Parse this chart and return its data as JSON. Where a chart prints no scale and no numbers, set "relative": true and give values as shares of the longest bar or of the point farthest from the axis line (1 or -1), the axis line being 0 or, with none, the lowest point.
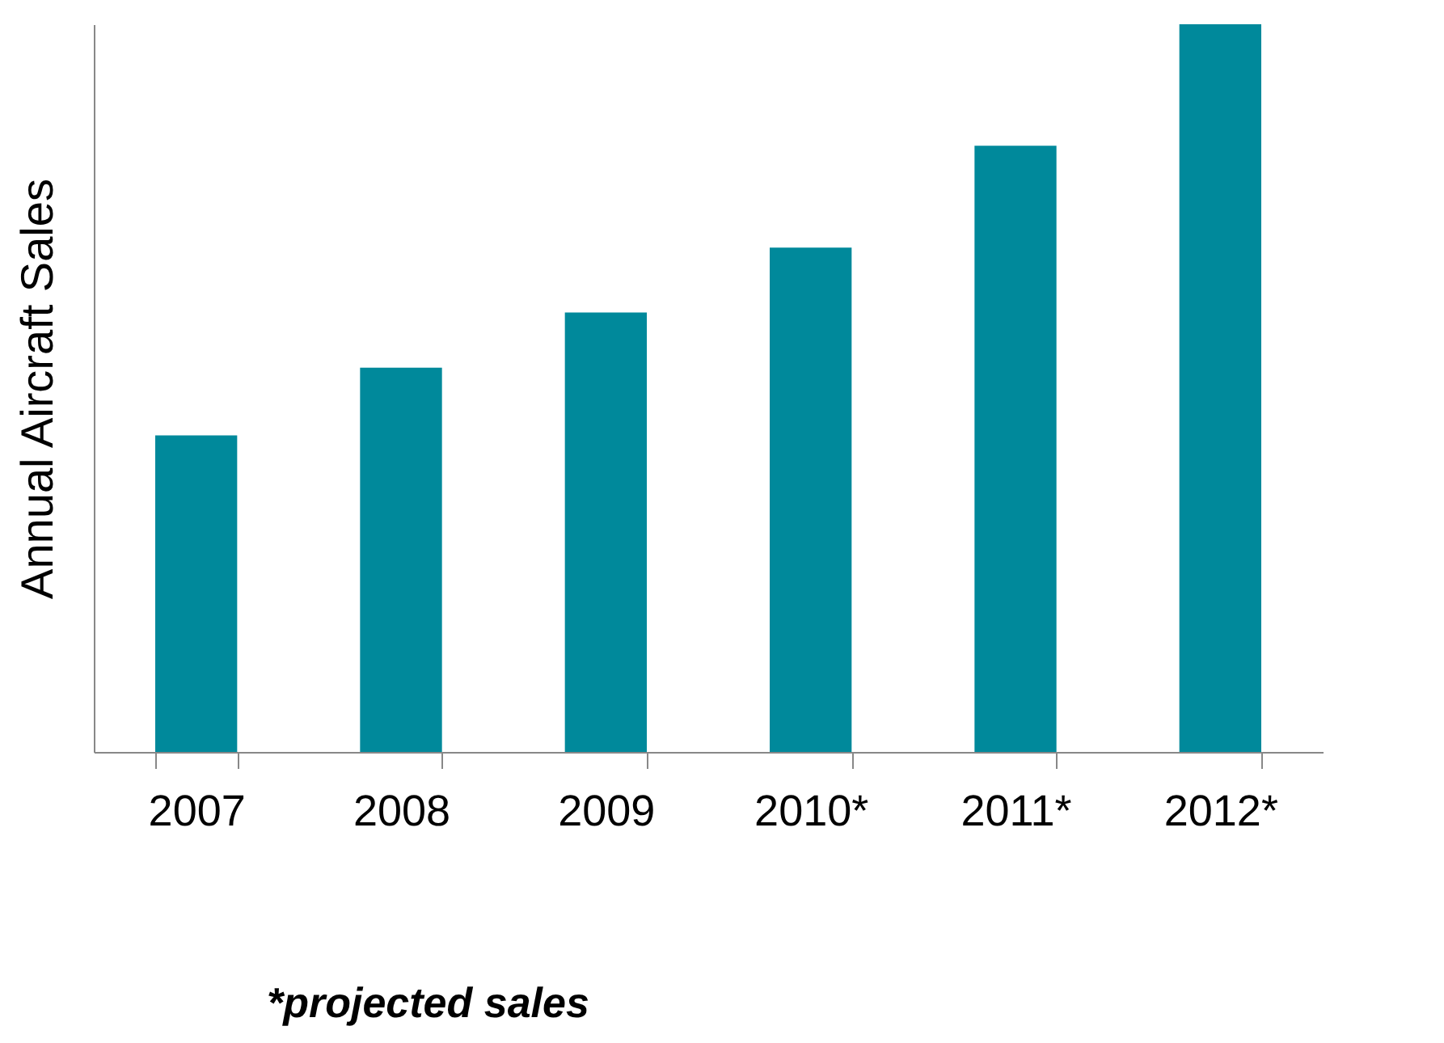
{
  "chart_data": {
    "type": "bar",
    "ylabel": "Annual Aircraft Sales",
    "categories": [
      "2007",
      "2008",
      "2009",
      "2010*",
      "2011*",
      "2012*"
    ],
    "values": [
      0.435,
      0.528,
      0.604,
      0.693,
      0.833,
      1
    ],
    "color": "#00899b",
    "relative": true,
    "annotations": [
      "*projected sales"
    ]
  }
}
